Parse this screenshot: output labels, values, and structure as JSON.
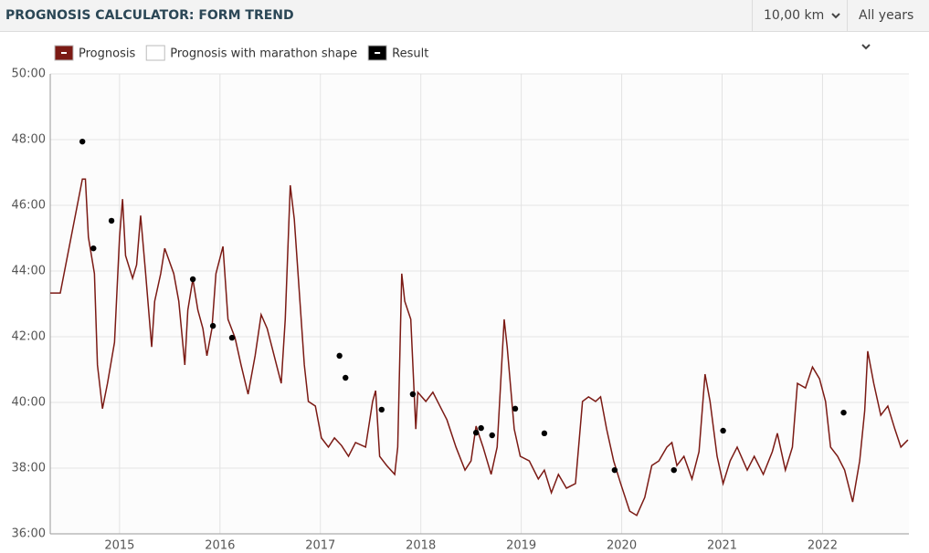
{
  "header": {
    "title": "PROGNOSIS CALCULATOR: FORM TREND",
    "distance": "10,00 km",
    "period": "All years"
  },
  "chart_data": {
    "type": "line",
    "xlim": [
      2014.31,
      2022.86
    ],
    "xticks": [
      2015,
      2016,
      2017,
      2018,
      2019,
      2020,
      2021,
      2022
    ],
    "ylim": [
      36,
      50
    ],
    "yticks": [
      {
        "value": 36,
        "label": "36:00"
      },
      {
        "value": 38,
        "label": "38:00"
      },
      {
        "value": 40,
        "label": "40:00"
      },
      {
        "value": 42,
        "label": "42:00"
      },
      {
        "value": 44,
        "label": "44:00"
      },
      {
        "value": 46,
        "label": "46:00"
      },
      {
        "value": 48,
        "label": "48:00"
      },
      {
        "value": 50,
        "label": "50:00"
      }
    ],
    "grid": true,
    "legend": "top-left",
    "series": [
      {
        "name": "Prognosis",
        "color": "#7b1a14",
        "mode": "line",
        "x": [
          2014.31,
          2014.41,
          2014.63,
          2014.66,
          2014.69,
          2014.75,
          2014.78,
          2014.83,
          2014.88,
          2014.95,
          2015.0,
          2015.03,
          2015.06,
          2015.13,
          2015.17,
          2015.21,
          2015.26,
          2015.32,
          2015.35,
          2015.41,
          2015.45,
          2015.54,
          2015.59,
          2015.65,
          2015.68,
          2015.73,
          2015.78,
          2015.83,
          2015.87,
          2015.92,
          2015.96,
          2016.03,
          2016.08,
          2016.15,
          2016.21,
          2016.28,
          2016.35,
          2016.41,
          2016.47,
          2016.54,
          2016.61,
          2016.65,
          2016.7,
          2016.74,
          2016.79,
          2016.84,
          2016.88,
          2016.95,
          2017.01,
          2017.08,
          2017.14,
          2017.21,
          2017.28,
          2017.35,
          2017.45,
          2017.52,
          2017.55,
          2017.59,
          2017.66,
          2017.74,
          2017.77,
          2017.81,
          2017.84,
          2017.9,
          2017.95,
          2017.97,
          2018.05,
          2018.12,
          2018.19,
          2018.26,
          2018.35,
          2018.44,
          2018.5,
          2018.55,
          2018.62,
          2018.7,
          2018.76,
          2018.83,
          2018.86,
          2018.93,
          2018.99,
          2019.08,
          2019.17,
          2019.23,
          2019.3,
          2019.37,
          2019.45,
          2019.54,
          2019.61,
          2019.67,
          2019.74,
          2019.79,
          2019.85,
          2019.92,
          2019.99,
          2020.08,
          2020.15,
          2020.23,
          2020.3,
          2020.37,
          2020.45,
          2020.5,
          2020.55,
          2020.62,
          2020.7,
          2020.77,
          2020.83,
          2020.88,
          2020.95,
          2021.01,
          2021.08,
          2021.15,
          2021.25,
          2021.32,
          2021.41,
          2021.5,
          2021.55,
          2021.63,
          2021.7,
          2021.75,
          2021.83,
          2021.9,
          2021.97,
          2022.03,
          2022.08,
          2022.15,
          2022.22,
          2022.3,
          2022.37,
          2022.42,
          2022.45,
          2022.51,
          2022.58,
          2022.65,
          2022.72,
          2022.78,
          2022.85
        ],
        "values": [
          43.33,
          43.33,
          46.8,
          46.8,
          45.03,
          43.92,
          41.14,
          39.81,
          40.58,
          41.83,
          45.03,
          46.19,
          44.47,
          43.78,
          44.19,
          45.69,
          43.92,
          41.69,
          43.08,
          43.92,
          44.69,
          43.92,
          43.08,
          41.14,
          42.81,
          43.75,
          42.81,
          42.25,
          41.42,
          42.25,
          43.92,
          44.75,
          42.53,
          41.97,
          41.14,
          40.25,
          41.42,
          42.67,
          42.25,
          41.42,
          40.58,
          42.53,
          46.61,
          45.58,
          43.36,
          41.14,
          40.03,
          39.89,
          38.92,
          38.64,
          38.92,
          38.69,
          38.36,
          38.78,
          38.64,
          40.03,
          40.36,
          38.36,
          38.08,
          37.81,
          38.64,
          43.92,
          43.08,
          42.53,
          39.19,
          40.31,
          40.03,
          40.31,
          39.89,
          39.47,
          38.64,
          37.94,
          38.22,
          39.28,
          38.64,
          37.81,
          38.64,
          42.53,
          41.69,
          39.19,
          38.36,
          38.22,
          37.67,
          37.94,
          37.25,
          37.81,
          37.39,
          37.53,
          40.03,
          40.17,
          40.03,
          40.17,
          39.19,
          38.22,
          37.53,
          36.69,
          36.56,
          37.11,
          38.08,
          38.22,
          38.64,
          38.78,
          38.08,
          38.36,
          37.67,
          38.5,
          40.86,
          40.03,
          38.36,
          37.53,
          38.22,
          38.64,
          37.94,
          38.36,
          37.81,
          38.5,
          39.06,
          37.94,
          38.64,
          40.58,
          40.44,
          41.08,
          40.72,
          40.03,
          38.64,
          38.36,
          37.94,
          36.97,
          38.22,
          39.75,
          41.56,
          40.58,
          39.61,
          39.89,
          39.19,
          38.64,
          38.86
        ]
      },
      {
        "name": "Prognosis with marathon shape",
        "color": "#ffffff",
        "mode": "line",
        "x": [],
        "values": []
      },
      {
        "name": "Result",
        "color": "#000000",
        "mode": "markers",
        "x": [
          2014.63,
          2014.74,
          2014.92,
          2015.73,
          2015.93,
          2016.12,
          2017.19,
          2017.25,
          2017.61,
          2017.92,
          2018.55,
          2018.6,
          2018.71,
          2018.94,
          2019.23,
          2019.93,
          2020.52,
          2021.01,
          2022.21
        ],
        "values": [
          47.94,
          44.69,
          45.53,
          43.75,
          42.33,
          41.97,
          41.42,
          40.75,
          39.78,
          40.25,
          39.08,
          39.22,
          39.0,
          39.81,
          39.06,
          37.94,
          37.94,
          39.14,
          39.69
        ]
      }
    ]
  }
}
